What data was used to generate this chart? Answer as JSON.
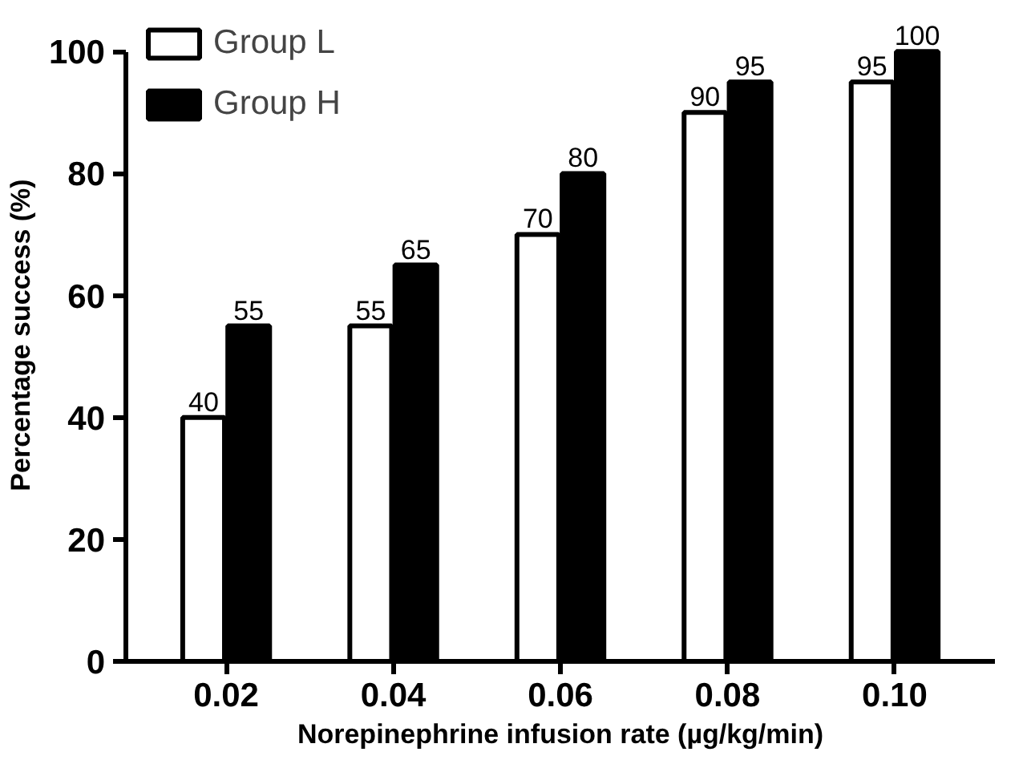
{
  "chart_data": {
    "type": "bar",
    "xlabel": "Norepinephrine infusion rate (µg/kg/min)",
    "ylabel": "Percentage success (%)",
    "categories": [
      "0.02",
      "0.04",
      "0.06",
      "0.08",
      "0.10"
    ],
    "series": [
      {
        "name": "Group L",
        "color": "#ffffff",
        "values": [
          40,
          55,
          70,
          90,
          95
        ]
      },
      {
        "name": "Group H",
        "color": "#000000",
        "values": [
          55,
          65,
          80,
          95,
          100
        ]
      }
    ],
    "ylim": [
      0,
      100
    ],
    "yticks": [
      0,
      20,
      40,
      60,
      80,
      100
    ],
    "data_labels": true,
    "legend": "top left",
    "grid": false
  }
}
